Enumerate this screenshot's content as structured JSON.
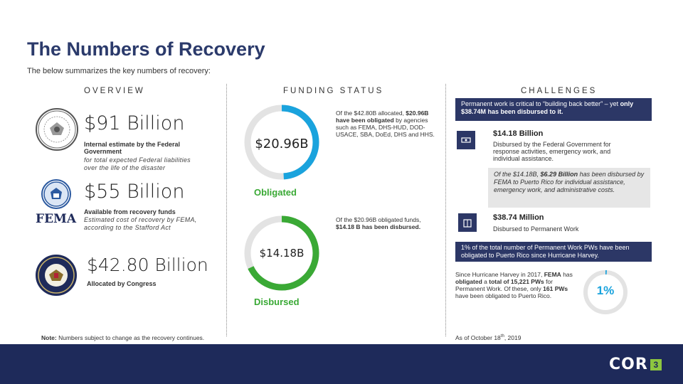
{
  "header": {
    "title": "The Numbers of Recovery",
    "subtitle": "The below summarizes the key numbers of recovery:"
  },
  "overview": {
    "heading": "OVERVIEW",
    "items": [
      {
        "amount": "$91 Billion",
        "label_bold": "Internal estimate by the Federal Government",
        "label_italic": "for total expected Federal liabilities over the life of the disaster",
        "seal": "federal-seal"
      },
      {
        "amount": "$55 Billion",
        "label_bold": "Available from recovery funds",
        "label_italic": "Estimated cost of recovery by FEMA, according to the Stafford Act",
        "seal": "dhs-seal",
        "org": "FEMA"
      },
      {
        "amount": "$42.80 Billion",
        "label_bold": "Allocated by Congress",
        "label_italic": "",
        "seal": "congress-seal"
      }
    ],
    "footnote_bold": "Note:",
    "footnote": "Numbers subject to change as the recovery continues."
  },
  "funding": {
    "heading": "FUNDING STATUS",
    "rings": [
      {
        "value": "$20.96B",
        "label": "Obligated",
        "fraction": 0.49,
        "color": "#1aa3dd",
        "note_parts": [
          "Of the $42.80B allocated, ",
          "$20.96B have been obligated",
          " by agencies such as FEMA, DHS-HUD, DOD-USACE, SBA, DoEd, DHS and HHS."
        ]
      },
      {
        "value": "$14.18B",
        "label": "Disbursed",
        "fraction": 0.68,
        "color": "#3aa935",
        "note_parts": [
          "Of the $20.96B obligated funds, ",
          "$14.18 B has been disbursed."
        ]
      }
    ]
  },
  "challenges": {
    "heading": "CHALLENGES",
    "banner_parts": [
      "Permanent work is critical to “building back better” – yet ",
      "only $38.74M has been disbursed to it."
    ],
    "items": [
      {
        "amount": "$14.18 Billion",
        "desc": "Disbursed by the Federal Government for response activities, emergency work, and individual assistance."
      },
      {
        "amount": "$38.74 Million",
        "desc": "Disbursed to Permanent Work"
      }
    ],
    "grey_parts": [
      "Of the $14.18B, ",
      "$6.29 Billion",
      " has been disbursed by FEMA to Puerto Rico for individual assistance, emergency work, and administrative costs."
    ],
    "pw_banner": "1% of the total number of Permanent Work PWs have been obligated to Puerto Rico since Hurricane Harvey.",
    "pw_parts": [
      "Since Hurricane Harvey in 2017, ",
      "FEMA",
      " has ",
      "obligated",
      " a ",
      "total of 15,221 PWs",
      " for Permanent Work. Of these, only ",
      "161 PWs",
      " have been obligated to Puerto Rico."
    ],
    "pw_percent": "1%",
    "pw_fraction": 0.01,
    "as_of_prefix": "As of October 18",
    "as_of_sup": "th",
    "as_of_suffix": ", 2019"
  },
  "footer": {
    "logo": "COR",
    "logo_mark": "3"
  },
  "colors": {
    "navy": "#2c3766",
    "title": "#2b3a6b",
    "blue_ring": "#1aa3dd",
    "green": "#3aa935",
    "footer": "#1e2a5a",
    "logo_accent": "#8dc63f"
  }
}
